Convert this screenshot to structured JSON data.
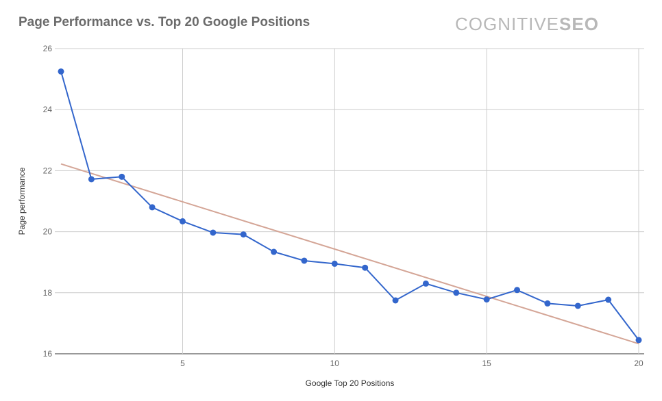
{
  "chart_data": {
    "type": "line",
    "title": "Page Performance vs. Top 20 Google Positions",
    "xlabel": "Google Top 20 Positions",
    "ylabel": "Page performance",
    "xlim": [
      1,
      20
    ],
    "ylim": [
      16,
      26
    ],
    "x_ticks": [
      5,
      10,
      15,
      20
    ],
    "y_ticks": [
      16,
      18,
      20,
      22,
      24,
      26
    ],
    "grid": true,
    "series": [
      {
        "x": [
          1,
          2,
          3,
          4,
          5,
          6,
          7,
          8,
          9,
          10,
          11,
          12,
          13,
          14,
          15,
          16,
          17,
          18,
          19,
          20
        ],
        "values": [
          25.25,
          21.72,
          21.8,
          20.8,
          20.34,
          19.97,
          19.91,
          19.34,
          19.05,
          18.95,
          18.82,
          17.75,
          18.3,
          18.0,
          17.78,
          18.09,
          17.65,
          17.57,
          17.77,
          16.45
        ],
        "color": "#3366cc"
      }
    ],
    "trendline": {
      "type": "linear",
      "x": [
        1,
        20
      ],
      "values": [
        22.22,
        16.33
      ],
      "color": "#d4a596"
    }
  },
  "brand": {
    "light": "COGNITIVE",
    "bold": "SEO"
  }
}
